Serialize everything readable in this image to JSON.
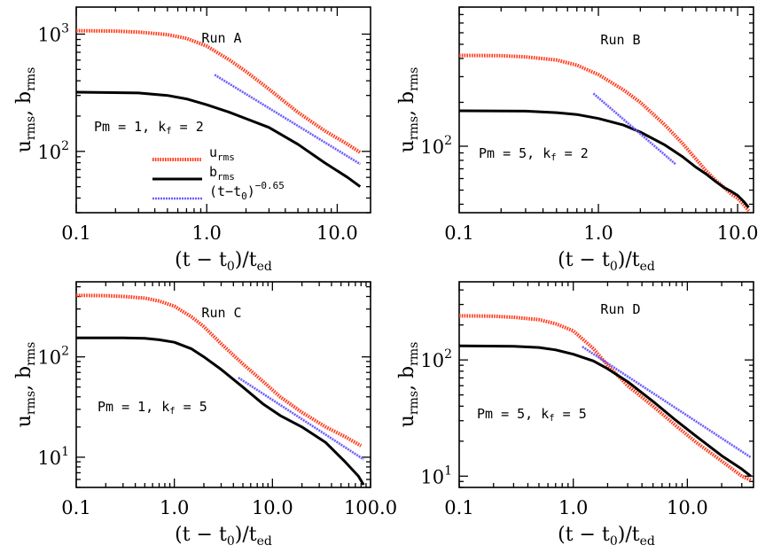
{
  "chart_data": [
    {
      "type": "line",
      "title": "Run A",
      "annotation": "Pm = 1, k_f = 2",
      "xlabel": "(t − t0)/t_ed",
      "ylabel": "u_rms, b_rms",
      "xscale": "log",
      "yscale": "log",
      "xlim": [
        0.1,
        18
      ],
      "ylim": [
        30,
        1700
      ],
      "xticks": [
        {
          "v": 0.1,
          "label": "0.1"
        },
        {
          "v": 1,
          "label": "1.0"
        },
        {
          "v": 10,
          "label": "10.0"
        }
      ],
      "yticks": [
        {
          "v": 100,
          "base": "10",
          "exp": "2"
        },
        {
          "v": 1000,
          "base": "10",
          "exp": "3"
        }
      ],
      "legend": {
        "placement": "center-left",
        "entries": [
          "u_rms",
          "b_rms",
          "(t−t0)^−0.65"
        ]
      },
      "series": [
        {
          "name": "u_rms",
          "color": "#ff3a1a",
          "style": "dotted",
          "x": [
            0.1,
            0.2,
            0.3,
            0.5,
            0.7,
            1.0,
            1.5,
            2.0,
            3.0,
            5.0,
            8.0,
            12.0,
            15.0
          ],
          "y": [
            1070,
            1060,
            1040,
            990,
            920,
            790,
            600,
            480,
            340,
            215,
            150,
            115,
            98
          ]
        },
        {
          "name": "b_rms",
          "color": "#000000",
          "style": "solid",
          "x": [
            0.1,
            0.3,
            0.5,
            0.7,
            1.0,
            1.5,
            2.0,
            3.0,
            5.0,
            8.0,
            12.0,
            15.0
          ],
          "y": [
            320,
            315,
            300,
            280,
            250,
            215,
            190,
            160,
            115,
            80,
            60,
            50
          ]
        },
        {
          "name": "(t−t0)^−0.65",
          "color": "#6a5cff",
          "style": "dotted",
          "x": [
            1.15,
            15.0
          ],
          "y": [
            450,
            78
          ]
        }
      ]
    },
    {
      "type": "line",
      "title": "Run B",
      "annotation": "Pm = 5, k_f = 2",
      "xlabel": "(t − t0)/t_ed",
      "ylabel": "u_rms, b_rms",
      "xscale": "log",
      "yscale": "log",
      "xlim": [
        0.1,
        13
      ],
      "ylim": [
        35,
        900
      ],
      "xticks": [
        {
          "v": 0.1,
          "label": "0.1"
        },
        {
          "v": 1,
          "label": "1.0"
        },
        {
          "v": 10,
          "label": "10.0"
        }
      ],
      "yticks": [
        {
          "v": 100,
          "base": "10",
          "exp": "2"
        }
      ],
      "series": [
        {
          "name": "u_rms",
          "color": "#ff3a1a",
          "style": "dotted",
          "x": [
            0.1,
            0.2,
            0.3,
            0.5,
            0.7,
            1.0,
            1.5,
            2.0,
            3.0,
            4.0,
            5.0,
            6.0,
            7.0,
            8.0,
            9.0,
            10.0,
            11.0,
            12.0
          ],
          "y": [
            420,
            418,
            410,
            390,
            360,
            310,
            245,
            200,
            140,
            105,
            82,
            67,
            58,
            52,
            47,
            44,
            40,
            36
          ]
        },
        {
          "name": "b_rms",
          "color": "#000000",
          "style": "solid",
          "x": [
            0.1,
            0.3,
            0.5,
            0.7,
            1.0,
            1.5,
            2.0,
            3.0,
            4.0,
            5.0,
            6.0,
            7.0,
            8.0,
            9.0,
            10.0,
            11.0,
            12.0
          ],
          "y": [
            175,
            174,
            170,
            165,
            155,
            140,
            125,
            102,
            85,
            72,
            64,
            57,
            52,
            49,
            46,
            42,
            38
          ]
        },
        {
          "name": "(t−t0)^−0.65",
          "color": "#6a5cff",
          "style": "dotted",
          "x": [
            0.92,
            3.6
          ],
          "y": [
            230,
            75
          ]
        }
      ]
    },
    {
      "type": "line",
      "title": "Run C",
      "annotation": "Pm = 1, k_f = 5",
      "xlabel": "(t − t0)/t_ed",
      "ylabel": "u_rms, b_rms",
      "xscale": "log",
      "yscale": "log",
      "xlim": [
        0.1,
        100
      ],
      "ylim": [
        5,
        560
      ],
      "xticks": [
        {
          "v": 0.1,
          "label": "0.1"
        },
        {
          "v": 1,
          "label": "1.0"
        },
        {
          "v": 10,
          "label": "10.0"
        },
        {
          "v": 100,
          "label": "100.0"
        }
      ],
      "yticks": [
        {
          "v": 10,
          "base": "10",
          "exp": "1"
        },
        {
          "v": 100,
          "base": "10",
          "exp": "2"
        }
      ],
      "series": [
        {
          "name": "u_rms",
          "color": "#ff3a1a",
          "style": "dotted",
          "x": [
            0.1,
            0.2,
            0.3,
            0.5,
            0.7,
            1.0,
            1.5,
            2.0,
            3.0,
            5.0,
            8.0,
            12.0,
            20.0,
            35.0,
            55.0,
            80.0
          ],
          "y": [
            410,
            408,
            400,
            385,
            360,
            320,
            250,
            200,
            135,
            85,
            57,
            40,
            28,
            20,
            16,
            13
          ]
        },
        {
          "name": "b_rms",
          "color": "#000000",
          "style": "solid",
          "x": [
            0.1,
            0.3,
            0.5,
            0.7,
            1.0,
            1.5,
            2.0,
            3.0,
            5.0,
            8.0,
            12.0,
            20.0,
            35.0,
            55.0,
            75.0,
            85.0
          ],
          "y": [
            155,
            155,
            153,
            148,
            140,
            120,
            100,
            75,
            50,
            34,
            26,
            20,
            14,
            9,
            6.5,
            5.3
          ]
        },
        {
          "name": "(t−t0)^−0.65",
          "color": "#6a5cff",
          "style": "dotted",
          "x": [
            4.5,
            85.0
          ],
          "y": [
            62,
            9.5
          ]
        }
      ]
    },
    {
      "type": "line",
      "title": "Run D",
      "annotation": "Pm = 5, k_f = 5",
      "xlabel": "(t − t0)/t_ed",
      "ylabel": "u_rms, b_rms",
      "xscale": "log",
      "yscale": "log",
      "xlim": [
        0.1,
        38
      ],
      "ylim": [
        8,
        470
      ],
      "xticks": [
        {
          "v": 0.1,
          "label": "0.1"
        },
        {
          "v": 1,
          "label": "1.0"
        },
        {
          "v": 10,
          "label": "10.0"
        }
      ],
      "yticks": [
        {
          "v": 10,
          "base": "10",
          "exp": "1"
        },
        {
          "v": 100,
          "base": "10",
          "exp": "2"
        }
      ],
      "series": [
        {
          "name": "u_rms",
          "color": "#ff3a1a",
          "style": "dotted",
          "x": [
            0.1,
            0.2,
            0.3,
            0.5,
            0.7,
            1.0,
            1.5,
            2.0,
            3.0,
            5.0,
            8.0,
            12.0,
            20.0,
            30.0,
            36.0
          ],
          "y": [
            240,
            238,
            233,
            222,
            205,
            178,
            125,
            90,
            60,
            40,
            27,
            19.5,
            13.5,
            10,
            9.2
          ]
        },
        {
          "name": "b_rms",
          "color": "#000000",
          "style": "solid",
          "x": [
            0.1,
            0.3,
            0.5,
            0.7,
            1.0,
            1.5,
            2.0,
            3.0,
            5.0,
            8.0,
            12.0,
            20.0,
            30.0,
            36.0
          ],
          "y": [
            132,
            131,
            128,
            122,
            112,
            98,
            84,
            65,
            44,
            30,
            22,
            15,
            11.5,
            10
          ]
        },
        {
          "name": "(t−t0)^−0.65",
          "color": "#6a5cff",
          "style": "dotted",
          "x": [
            1.2,
            36.0
          ],
          "y": [
            130,
            14.5
          ]
        }
      ]
    }
  ]
}
